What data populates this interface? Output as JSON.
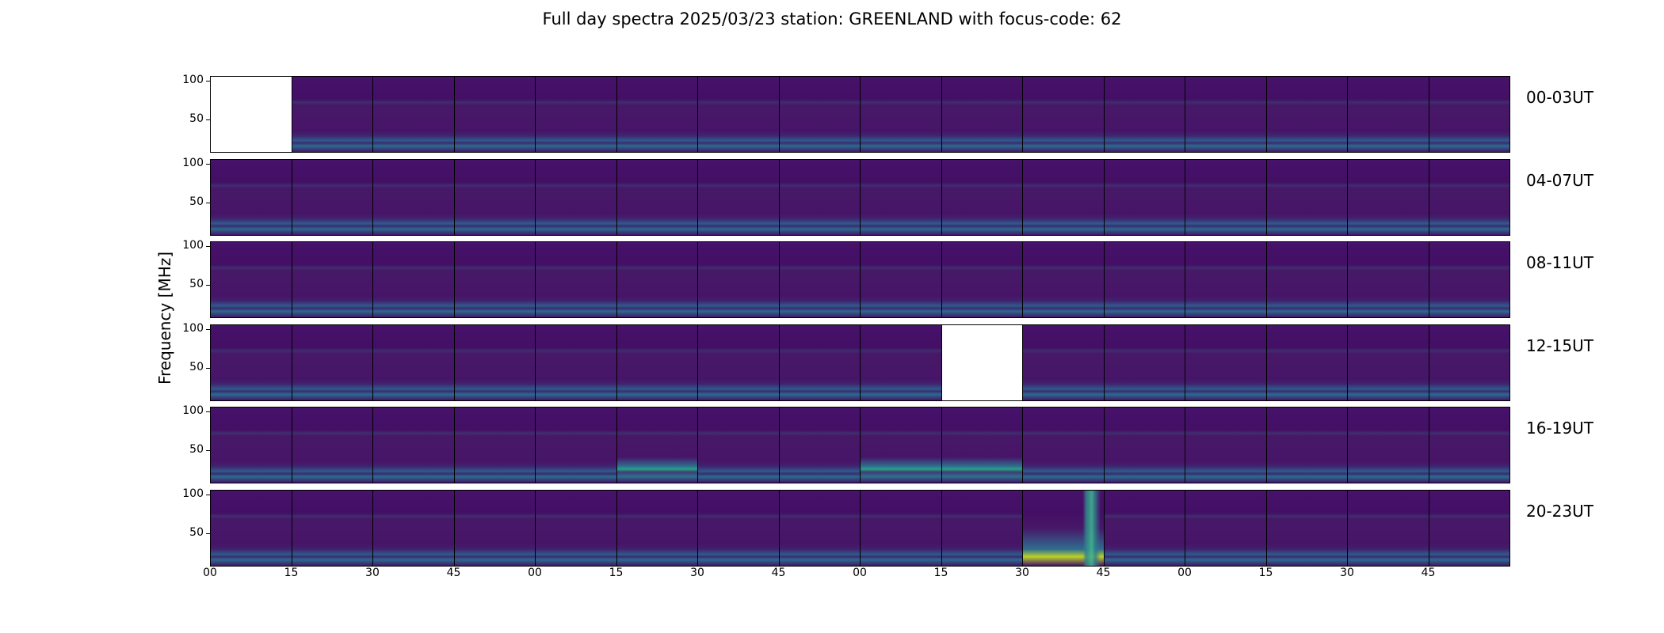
{
  "title": "Full day spectra 2025/03/23 station: GREENLAND with focus-code: 62",
  "chart_data": {
    "type": "heatmap",
    "title": "Full day spectra 2025/03/23 station: GREENLAND with focus-code: 62",
    "ylabel": "Frequency [MHz]",
    "xlabel": "",
    "y_ticks": [
      "100",
      "50"
    ],
    "x_ticks": [
      "00",
      "15",
      "30",
      "45",
      "00",
      "15",
      "30",
      "45",
      "00",
      "15",
      "30",
      "45",
      "00",
      "15",
      "30",
      "45"
    ],
    "colormap": "viridis",
    "panels_per_row": 16,
    "rows": [
      {
        "label": "00-03UT",
        "missing_panels": [
          0
        ],
        "bright_panels": []
      },
      {
        "label": "04-07UT",
        "missing_panels": [],
        "bright_panels": []
      },
      {
        "label": "08-11UT",
        "missing_panels": [],
        "bright_panels": []
      },
      {
        "label": "12-15UT",
        "missing_panels": [
          9
        ],
        "bright_panels": []
      },
      {
        "label": "16-19UT",
        "missing_panels": [],
        "bright_panels": [
          5,
          8,
          9
        ]
      },
      {
        "label": "20-23UT",
        "missing_panels": [],
        "bright_panels": [],
        "burst_panels": [
          10
        ]
      }
    ]
  }
}
